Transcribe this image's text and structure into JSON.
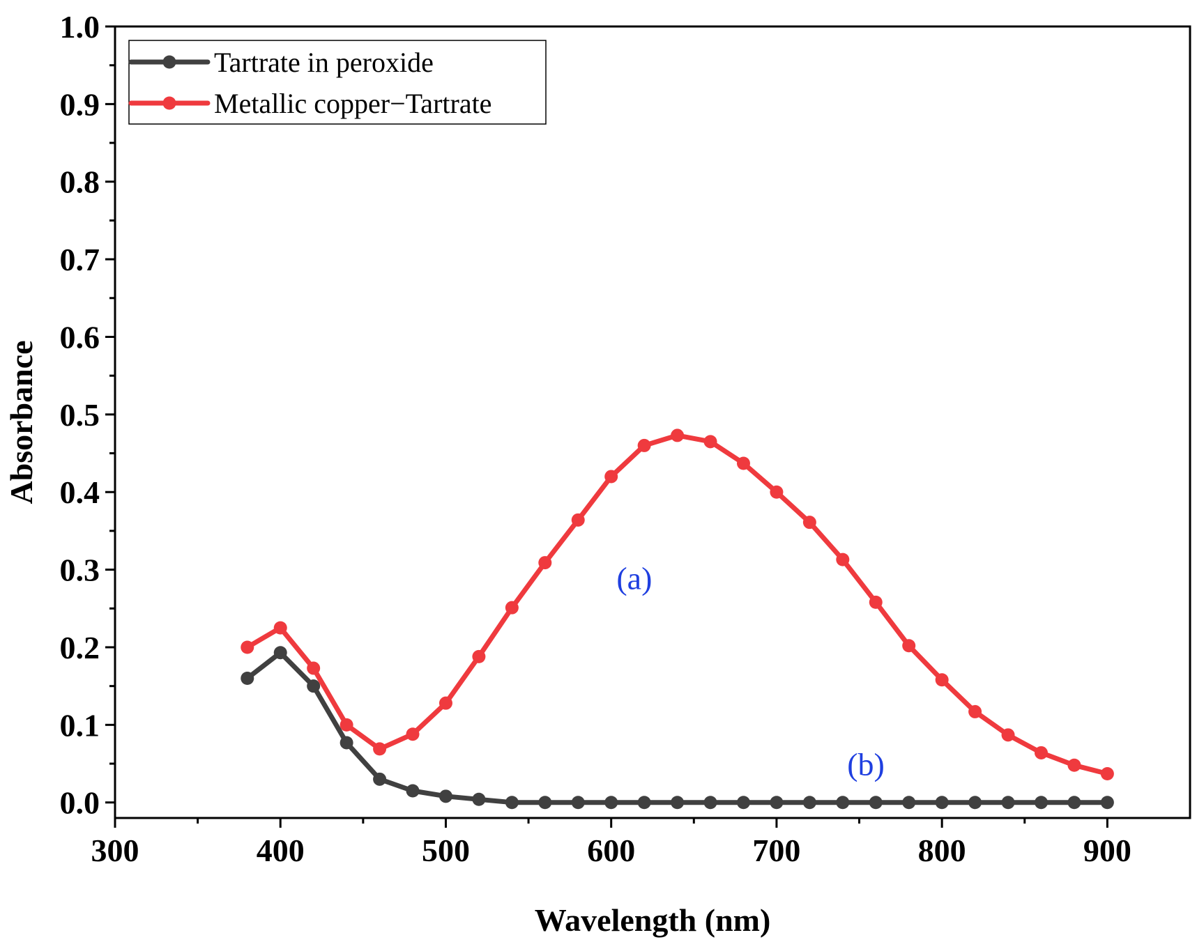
{
  "chart_data": {
    "type": "line",
    "title": "",
    "xlabel": "Wavelength (nm)",
    "ylabel": "Absorbance",
    "xlim": [
      300,
      950
    ],
    "ylim": [
      -0.02,
      1.0
    ],
    "x_ticks": [
      300,
      400,
      500,
      600,
      700,
      800,
      900
    ],
    "y_ticks": [
      0.0,
      0.1,
      0.2,
      0.3,
      0.4,
      0.5,
      0.6,
      0.7,
      0.8,
      0.9,
      1.0
    ],
    "x_tick_labels": [
      "300",
      "400",
      "500",
      "600",
      "700",
      "800",
      "900"
    ],
    "y_tick_labels": [
      "0.0",
      "0.1",
      "0.2",
      "0.3",
      "0.4",
      "0.5",
      "0.6",
      "0.7",
      "0.8",
      "0.9",
      "1.0"
    ],
    "grid": false,
    "legend_position": "top-left",
    "x": [
      380,
      400,
      420,
      440,
      460,
      480,
      500,
      520,
      540,
      560,
      580,
      600,
      620,
      640,
      660,
      680,
      700,
      720,
      740,
      760,
      780,
      800,
      820,
      840,
      860,
      880,
      900
    ],
    "series": [
      {
        "name": "Tartrate in peroxide",
        "color": "#404040",
        "values": [
          0.16,
          0.193,
          0.15,
          0.077,
          0.03,
          0.015,
          0.008,
          0.004,
          0.0,
          0.0,
          0.0,
          0.0,
          0.0,
          0.0,
          0.0,
          0.0,
          0.0,
          0.0,
          0.0,
          0.0,
          0.0,
          0.0,
          0.0,
          0.0,
          0.0,
          0.0,
          0.0
        ]
      },
      {
        "name": "Metallic copper−Tartrate",
        "color": "#ef3a3e",
        "values": [
          0.2,
          0.225,
          0.173,
          0.1,
          0.069,
          0.088,
          0.128,
          0.188,
          0.251,
          0.309,
          0.364,
          0.42,
          0.46,
          0.473,
          0.465,
          0.437,
          0.4,
          0.361,
          0.313,
          0.258,
          0.202,
          0.158,
          0.117,
          0.087,
          0.064,
          0.048,
          0.037
        ]
      }
    ],
    "annotations": [
      {
        "text": "(a)",
        "color": "#1f3fe0",
        "x": 614,
        "y": 0.275
      },
      {
        "text": "(b)",
        "color": "#1f3fe0",
        "x": 754,
        "y": 0.035
      }
    ]
  }
}
